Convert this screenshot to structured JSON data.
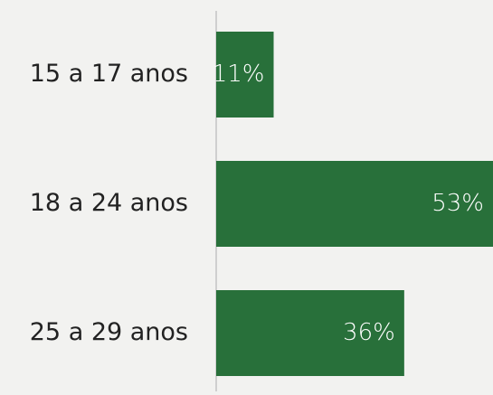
{
  "chart_data": {
    "type": "hbar",
    "categories": [
      "15 a 17 anos",
      "18 a 24 anos",
      "25 a 29 anos"
    ],
    "values": [
      11,
      53,
      36
    ],
    "value_labels": [
      "11%",
      "53%",
      "36%"
    ],
    "color": "#28703a",
    "xlim": [
      0,
      53
    ]
  }
}
